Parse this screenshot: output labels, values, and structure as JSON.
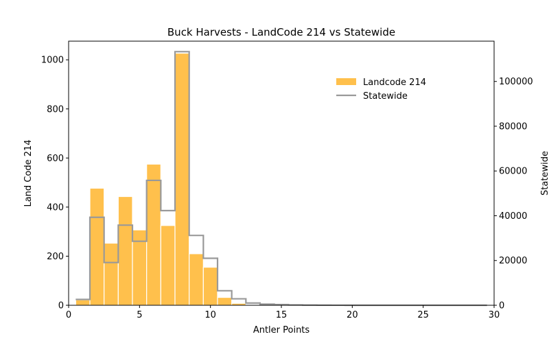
{
  "chart_data": {
    "type": "bar",
    "title": "Buck Harvests - LandCode 214 vs Statewide",
    "xlabel": "Antler Points",
    "ylabel_left": "Land Code 214",
    "ylabel_right": "Statewide",
    "xlim": [
      0,
      30
    ],
    "ylim_left": [
      0,
      1076
    ],
    "ylim_right": [
      0,
      118000
    ],
    "x_ticks": [
      0,
      5,
      10,
      15,
      20,
      25,
      30
    ],
    "y_left_ticks": [
      0,
      200,
      400,
      600,
      800,
      1000
    ],
    "y_right_ticks": [
      0,
      20000,
      40000,
      60000,
      80000,
      100000
    ],
    "grid": false,
    "legend_position": "top-right",
    "colors": {
      "bars": "#ffa500",
      "bar_edge": "#ffffff",
      "statewide_line": "#999999"
    },
    "series": [
      {
        "name": "Landcode 214",
        "kind": "bar",
        "axis": "left",
        "x": [
          1,
          2,
          3,
          4,
          5,
          6,
          7,
          8,
          9,
          10,
          11,
          12,
          13,
          14,
          15,
          16
        ],
        "values": [
          22,
          477,
          253,
          443,
          307,
          575,
          325,
          1027,
          210,
          155,
          32,
          8,
          2,
          1,
          0,
          0
        ]
      },
      {
        "name": "Statewide",
        "kind": "step",
        "axis": "right",
        "x": [
          1,
          2,
          3,
          4,
          5,
          6,
          7,
          8,
          9,
          10,
          11,
          12,
          13,
          14,
          15,
          16,
          17,
          18,
          19,
          20,
          21,
          22,
          23,
          24,
          25,
          26,
          27,
          28,
          29
        ],
        "values": [
          2600,
          39300,
          19100,
          35800,
          28600,
          55800,
          42300,
          113300,
          31200,
          21000,
          6500,
          2900,
          1000,
          500,
          300,
          150,
          80,
          40,
          20,
          10,
          5,
          3,
          2,
          1,
          1,
          0,
          0,
          0,
          0
        ]
      }
    ]
  }
}
